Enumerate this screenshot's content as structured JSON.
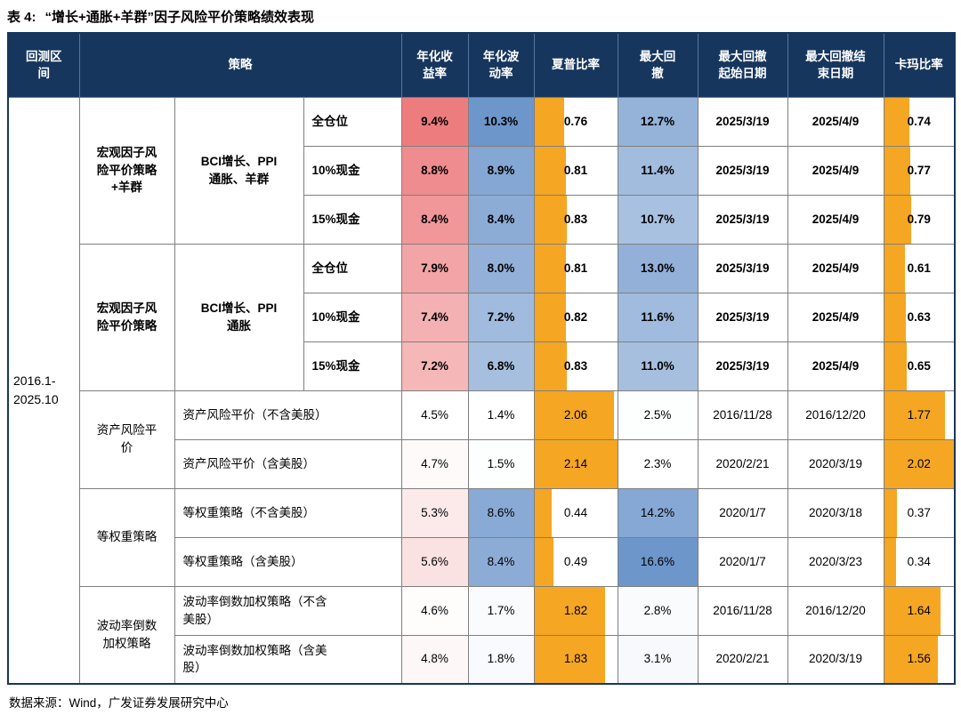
{
  "title": {
    "prefix": "表 4:",
    "text": "“增长+通胀+羊群”因子风险平价策略绩效表现"
  },
  "source_note": "数据来源：Wind，广发证券发展研究中心",
  "colors": {
    "header_bg": "#17365D",
    "header_grid": "#5577A3",
    "grid": "#7F7F7F",
    "bar_orange": "#F5A623",
    "heat_red_max": "#ED7C7F",
    "heat_blue_max": "#6D96CB"
  },
  "table": {
    "period": "2016.1-\n2025.10",
    "headers": [
      {
        "label": "回测区\n间",
        "span": 1
      },
      {
        "label": "策略",
        "span": 3
      },
      {
        "label": "年化收\n益率",
        "span": 1
      },
      {
        "label": "年化波\n动率",
        "span": 1
      },
      {
        "label": "夏普比率",
        "span": 1
      },
      {
        "label": "最大回\n撤",
        "span": 1
      },
      {
        "label": "最大回撤\n起始日期",
        "span": 1
      },
      {
        "label": "最大回撤结\n束日期",
        "span": 1
      },
      {
        "label": "卡玛比率",
        "span": 1
      }
    ],
    "groups": [
      {
        "name": "宏观因子风\n险平价策略\n+羊群",
        "factors": "BCI增长、PPI\n通胀、羊群",
        "bold": true,
        "rows": [
          {
            "label": "全仓位",
            "return": "9.4%",
            "vol": "10.3%",
            "sharpe": "0.76",
            "drawdown": "12.7%",
            "dd_start": "2025/3/19",
            "dd_end": "2025/4/9",
            "calmar": "0.74"
          },
          {
            "label": "10%现金",
            "return": "8.8%",
            "vol": "8.9%",
            "sharpe": "0.81",
            "drawdown": "11.4%",
            "dd_start": "2025/3/19",
            "dd_end": "2025/4/9",
            "calmar": "0.77"
          },
          {
            "label": "15%现金",
            "return": "8.4%",
            "vol": "8.4%",
            "sharpe": "0.83",
            "drawdown": "10.7%",
            "dd_start": "2025/3/19",
            "dd_end": "2025/4/9",
            "calmar": "0.79"
          }
        ]
      },
      {
        "name": "宏观因子风\n险平价策略",
        "factors": "BCI增长、PPI\n通胀",
        "bold": true,
        "rows": [
          {
            "label": "全仓位",
            "return": "7.9%",
            "vol": "8.0%",
            "sharpe": "0.81",
            "drawdown": "13.0%",
            "dd_start": "2025/3/19",
            "dd_end": "2025/4/9",
            "calmar": "0.61"
          },
          {
            "label": "10%现金",
            "return": "7.4%",
            "vol": "7.2%",
            "sharpe": "0.82",
            "drawdown": "11.6%",
            "dd_start": "2025/3/19",
            "dd_end": "2025/4/9",
            "calmar": "0.63"
          },
          {
            "label": "15%现金",
            "return": "7.2%",
            "vol": "6.8%",
            "sharpe": "0.83",
            "drawdown": "11.0%",
            "dd_start": "2025/3/19",
            "dd_end": "2025/4/9",
            "calmar": "0.65"
          }
        ]
      },
      {
        "name": "资产风险平\n价",
        "bold": false,
        "rows": [
          {
            "label": "资产风险平价（不含美股）",
            "return": "4.5%",
            "vol": "1.4%",
            "sharpe": "2.06",
            "drawdown": "2.5%",
            "dd_start": "2016/11/28",
            "dd_end": "2016/12/20",
            "calmar": "1.77"
          },
          {
            "label": "资产风险平价（含美股）",
            "return": "4.7%",
            "vol": "1.5%",
            "sharpe": "2.14",
            "drawdown": "2.3%",
            "dd_start": "2020/2/21",
            "dd_end": "2020/3/19",
            "calmar": "2.02"
          }
        ]
      },
      {
        "name": "等权重策略",
        "bold": false,
        "rows": [
          {
            "label": "等权重策略（不含美股）",
            "return": "5.3%",
            "vol": "8.6%",
            "sharpe": "0.44",
            "drawdown": "14.2%",
            "dd_start": "2020/1/7",
            "dd_end": "2020/3/18",
            "calmar": "0.37"
          },
          {
            "label": "等权重策略（含美股）",
            "return": "5.6%",
            "vol": "8.4%",
            "sharpe": "0.49",
            "drawdown": "16.6%",
            "dd_start": "2020/1/7",
            "dd_end": "2020/3/23",
            "calmar": "0.34"
          }
        ]
      },
      {
        "name": "波动率倒数\n加权策略",
        "bold": false,
        "rows": [
          {
            "label": "波动率倒数加权策略（不含\n美股）",
            "return": "4.6%",
            "vol": "1.7%",
            "sharpe": "1.82",
            "drawdown": "2.8%",
            "dd_start": "2016/11/28",
            "dd_end": "2016/12/20",
            "calmar": "1.64"
          },
          {
            "label": "波动率倒数加权策略（含美\n股）",
            "return": "4.8%",
            "vol": "1.8%",
            "sharpe": "1.83",
            "drawdown": "3.1%",
            "dd_start": "2020/2/21",
            "dd_end": "2020/3/19",
            "calmar": "1.56"
          }
        ]
      }
    ]
  }
}
